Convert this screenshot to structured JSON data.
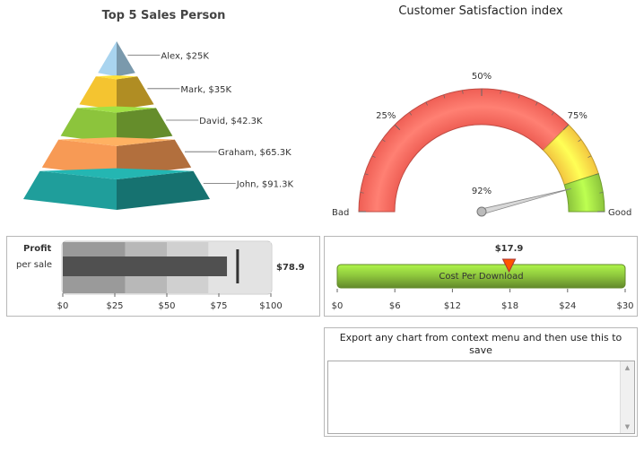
{
  "chart_data": [
    {
      "type": "pyramid",
      "title": "Top 5 Sales Person",
      "data": [
        {
          "label": "Alex, $25K",
          "value": 25,
          "color": "#a9d4ef"
        },
        {
          "label": "Mark, $35K",
          "value": 35,
          "color": "#f4c430"
        },
        {
          "label": "David, $42.3K",
          "value": 42.3,
          "color": "#8cc43c"
        },
        {
          "label": "Graham, $65.3K",
          "value": 65.3,
          "color": "#f79a55"
        },
        {
          "label": "John, $91.3K",
          "value": 91.3,
          "color": "#1f9e9b"
        }
      ]
    },
    {
      "type": "angular-gauge",
      "title": "Customer Satisfaction index",
      "min": 0,
      "max": 100,
      "value": 92,
      "value_label": "92%",
      "tick_labels": [
        "25%",
        "50%",
        "75%"
      ],
      "tick_values": [
        25,
        50,
        75
      ],
      "min_label": "Bad",
      "max_label": "Good",
      "bands": [
        {
          "from": 0,
          "to": 75,
          "color": "#ef5f55"
        },
        {
          "from": 75,
          "to": 90,
          "color": "#f3c640"
        },
        {
          "from": 90,
          "to": 100,
          "color": "#8cc43c"
        }
      ]
    },
    {
      "type": "bullet",
      "title": "Profit",
      "subtitle": "per sale",
      "value": 78.9,
      "value_label": "$78.9",
      "target": 84,
      "xlim": [
        0,
        100
      ],
      "tick_labels": [
        "$0",
        "$25",
        "$50",
        "$75",
        "$100"
      ],
      "tick_values": [
        0,
        25,
        50,
        75,
        100
      ],
      "bands": [
        {
          "from": 0,
          "to": 30,
          "color": "#9a9a9a"
        },
        {
          "from": 30,
          "to": 50,
          "color": "#b8b8b8"
        },
        {
          "from": 50,
          "to": 70,
          "color": "#d0d0d0"
        },
        {
          "from": 70,
          "to": 100,
          "color": "#e3e3e3"
        }
      ]
    },
    {
      "type": "linear-gauge",
      "title": "Cost Per Download",
      "value": 17.9,
      "value_label": "$17.9",
      "xlim": [
        0,
        30
      ],
      "tick_labels": [
        "$0",
        "$6",
        "$12",
        "$18",
        "$24",
        "$30"
      ],
      "tick_values": [
        0,
        6,
        12,
        18,
        24,
        30
      ],
      "bar_color": "#8cc43c",
      "pointer_color": "#ff5500"
    }
  ],
  "export_box": {
    "message": "Export any chart from context menu and then use this to save",
    "textarea_value": ""
  }
}
